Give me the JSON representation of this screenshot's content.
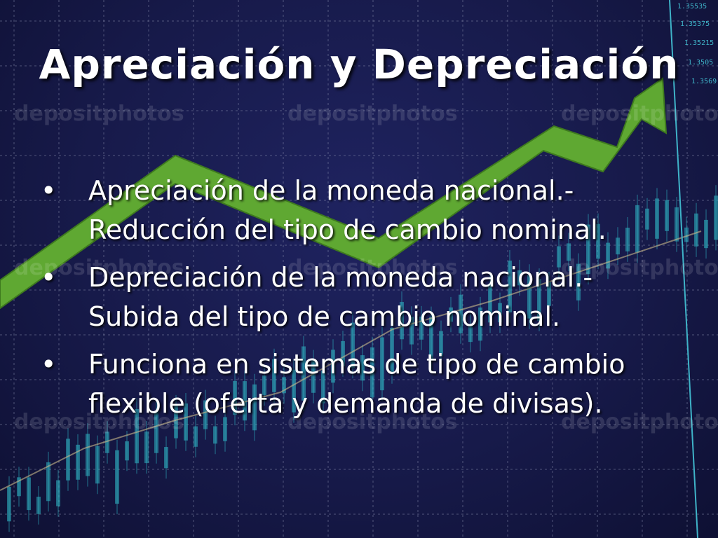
{
  "slide": {
    "title": "Apreciación y Depreciación",
    "bullets": [
      {
        "marker": "•",
        "text": "Apreciación de la moneda nacional.- Reducción del tipo de cambio nominal."
      },
      {
        "marker": "•",
        "text": "Depreciación de la moneda nacional.- Subida del tipo de cambio nominal."
      },
      {
        "marker": "•",
        "text": "Funciona en sistemas de tipo de cambio flexible (oferta y demanda de divisas)."
      }
    ]
  },
  "background": {
    "watermark": "depositphotos",
    "price_labels": [
      "1.35535",
      "1.35375",
      "1.35215",
      "1.3505",
      "1.3569"
    ],
    "colors": {
      "background": "#1b1e55",
      "grid": "#8a8fb0",
      "arrow": "#5fa832",
      "candles": "#2fb6c4"
    }
  }
}
